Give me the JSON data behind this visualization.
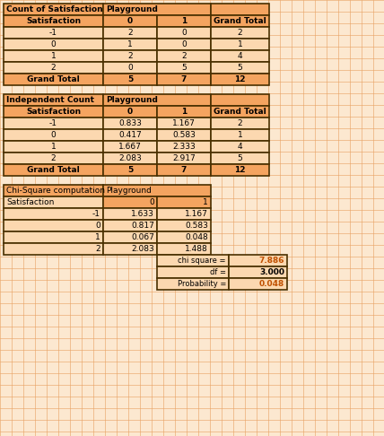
{
  "bg_color": "#fce8d0",
  "header_bg": "#f4a460",
  "border_color": "#4a3000",
  "cell_bg": "#fcd8b0",
  "grid_line_color": "#e8a060",
  "text_color_black": "#000000",
  "text_color_orange": "#c05000",
  "table1_title": "Count of Satisfaction",
  "table1_subtitle": "Playground",
  "table1_row_header": "Satisfaction",
  "table1_col_headers": [
    "0",
    "1",
    "Grand Total"
  ],
  "table1_rows": [
    "-1",
    "0",
    "1",
    "2",
    "Grand Total"
  ],
  "table1_data": [
    [
      2,
      0,
      2
    ],
    [
      1,
      0,
      1
    ],
    [
      2,
      2,
      4
    ],
    [
      0,
      5,
      5
    ],
    [
      5,
      7,
      12
    ]
  ],
  "table2_title": "Independent Count",
  "table2_subtitle": "Playground",
  "table2_row_header": "Satisfaction",
  "table2_col_headers": [
    "0",
    "1",
    "Grand Total"
  ],
  "table2_rows": [
    "-1",
    "0",
    "1",
    "2",
    "Grand Total"
  ],
  "table2_data": [
    [
      "0.833",
      "1.167",
      2
    ],
    [
      "0.417",
      "0.583",
      1
    ],
    [
      "1.667",
      "2.333",
      4
    ],
    [
      "2.083",
      "2.917",
      5
    ],
    [
      5,
      7,
      12
    ]
  ],
  "table3_title": "Chi-Square computation",
  "table3_subtitle": "Playground",
  "table3_row_header": "Satisfaction",
  "table3_col_headers": [
    "0",
    "1"
  ],
  "table3_rows": [
    "-1",
    "0",
    "1",
    "2"
  ],
  "table3_data": [
    [
      "1.633",
      "1.167"
    ],
    [
      "0.817",
      "0.583"
    ],
    [
      "0.067",
      "0.048"
    ],
    [
      "2.083",
      "1.488"
    ]
  ],
  "chi_square": "7.886",
  "df": "3.000",
  "probability": "0.048"
}
